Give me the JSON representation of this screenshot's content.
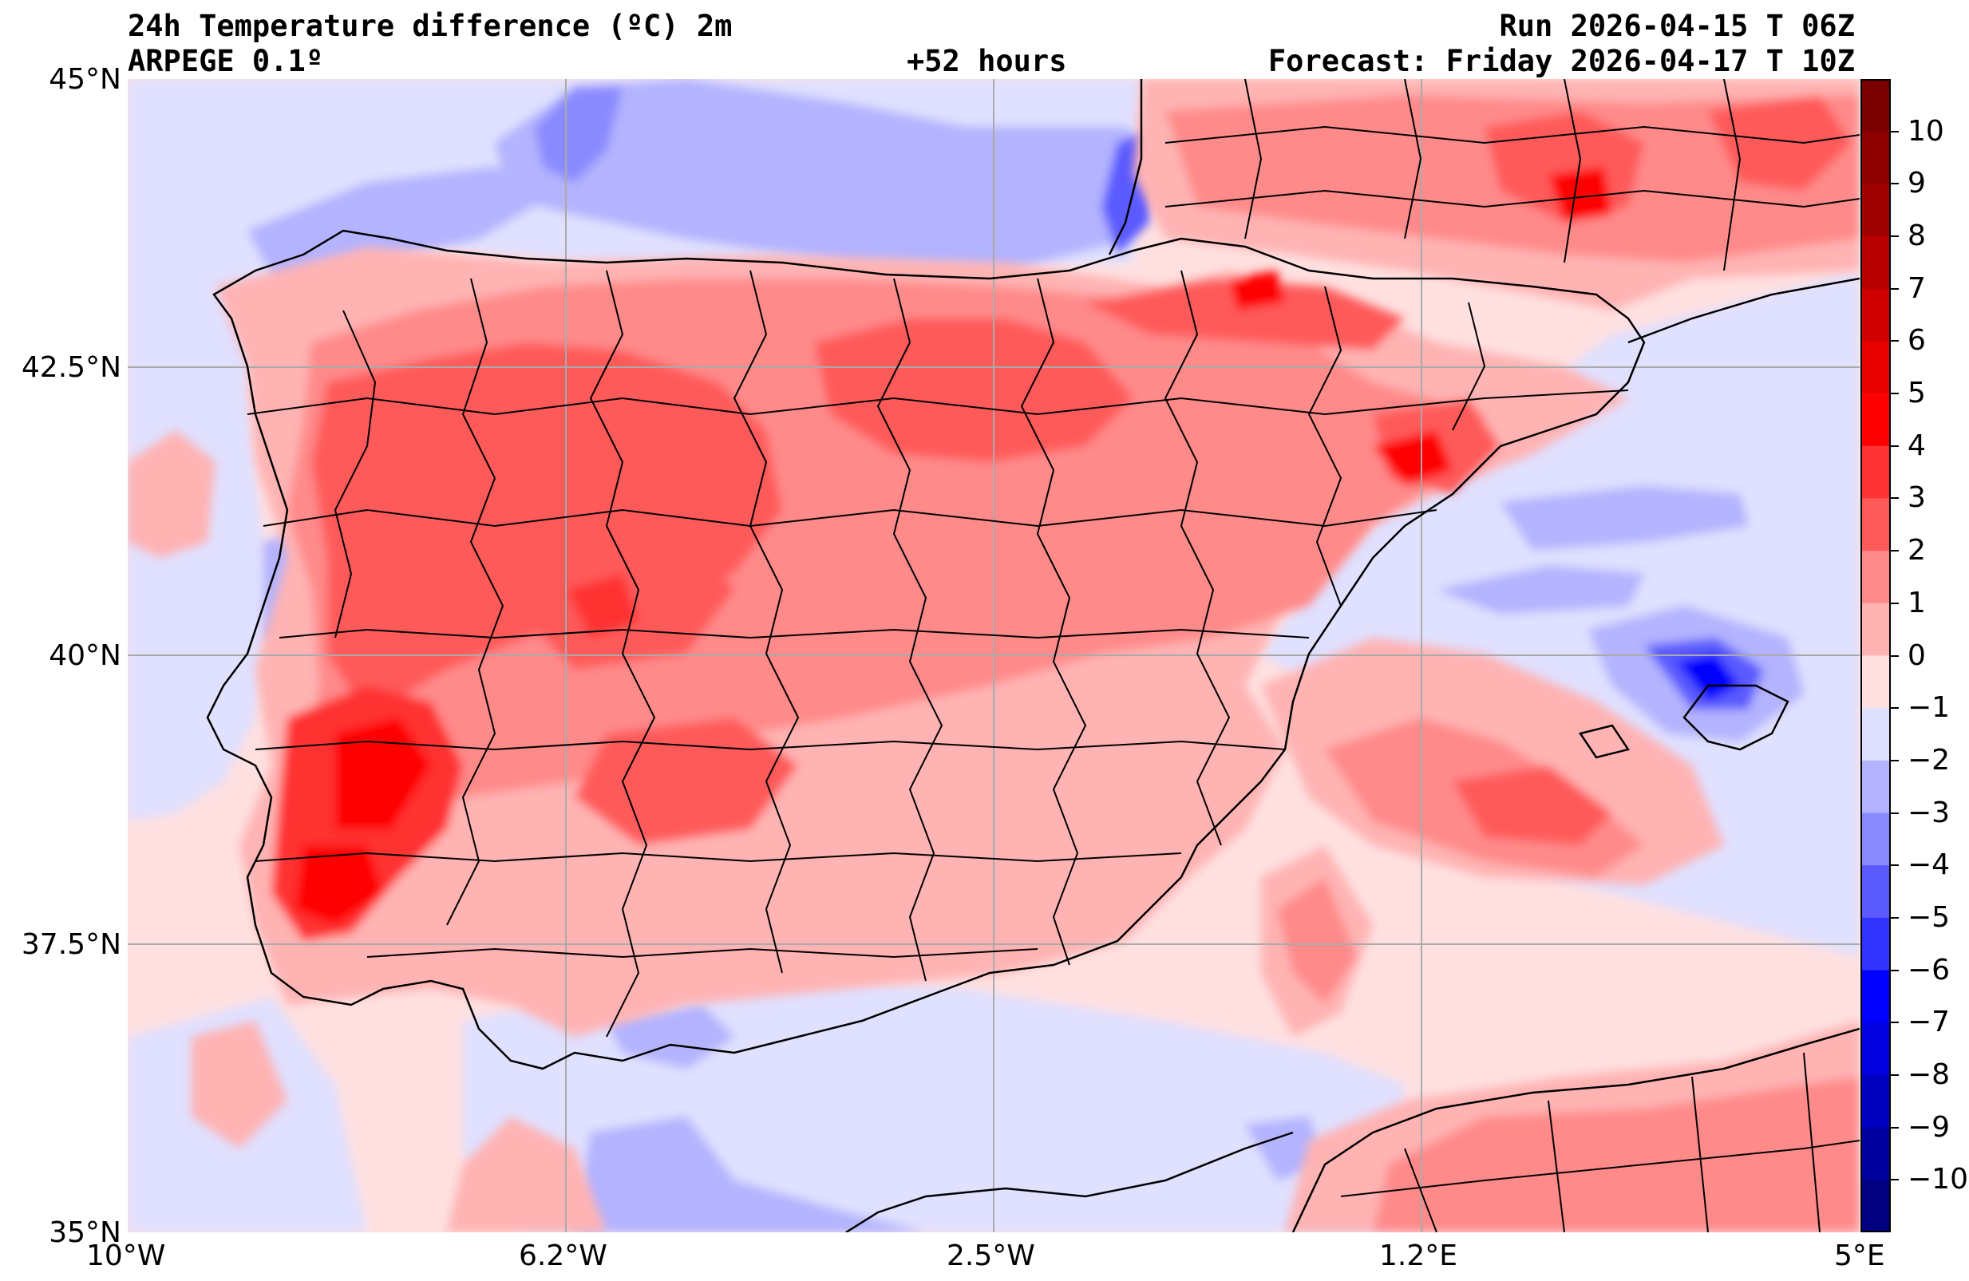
{
  "header": {
    "title": "24h Temperature difference (ºC) 2m",
    "model": "ARPEGE 0.1º",
    "lead_time": "+52 hours",
    "run": "Run 2026-04-15 T 06Z",
    "forecast": "Forecast: Friday 2026-04-17 T 10Z"
  },
  "map": {
    "projection": "lat-lon",
    "lon_range": [
      -10,
      5
    ],
    "lat_range": [
      35,
      45
    ],
    "grid": true,
    "borders": "country and province boundaries",
    "field": "24h 2m temperature difference"
  },
  "axes": {
    "lat_ticks": [
      {
        "value": 45,
        "label": "45°N"
      },
      {
        "value": 42.5,
        "label": "42.5°N"
      },
      {
        "value": 40,
        "label": "40°N"
      },
      {
        "value": 37.5,
        "label": "37.5°N"
      },
      {
        "value": 35,
        "label": "35°N"
      }
    ],
    "lon_ticks": [
      {
        "value": -10,
        "label": "10°W"
      },
      {
        "value": -6.25,
        "label": "6.2°W"
      },
      {
        "value": -2.5,
        "label": "2.5°W"
      },
      {
        "value": 1.25,
        "label": "1.2°E"
      },
      {
        "value": 5,
        "label": "5°E"
      }
    ]
  },
  "colorbar": {
    "min": -11,
    "max": 11,
    "labels": [
      "10",
      "9",
      "8",
      "7",
      "6",
      "5",
      "4",
      "3",
      "2",
      "1",
      "0",
      "−1",
      "−2",
      "−3",
      "−4",
      "−5",
      "−6",
      "−7",
      "−8",
      "−9",
      "−10"
    ],
    "label_values": [
      10,
      9,
      8,
      7,
      6,
      5,
      4,
      3,
      2,
      1,
      0,
      -1,
      -2,
      -3,
      -4,
      -5,
      -6,
      -7,
      -8,
      -9,
      -10
    ],
    "colors_top_to_bottom": [
      "#7a0000",
      "#8e0000",
      "#a00000",
      "#b80000",
      "#d00000",
      "#e80000",
      "#ff0000",
      "#ff3333",
      "#ff5a5a",
      "#ff8a8a",
      "#ffb3b3",
      "#ffe0e0",
      "#e0e0ff",
      "#b3b3ff",
      "#8a8aff",
      "#5a5aff",
      "#3333ff",
      "#0000ff",
      "#0000e0",
      "#0000c0",
      "#0000a0",
      "#000080"
    ]
  }
}
